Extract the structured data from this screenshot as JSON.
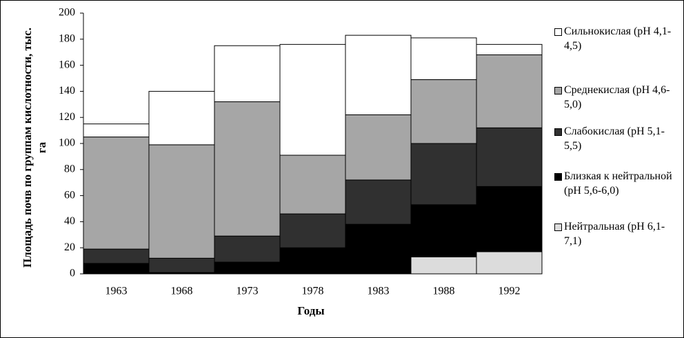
{
  "chart_data": {
    "type": "stacked_bar",
    "x_label": "Годы",
    "y_label": "Площадь почв по группам кислотности, тыс. га",
    "categories": [
      "1963",
      "1968",
      "1973",
      "1978",
      "1983",
      "1988",
      "1992"
    ],
    "series": [
      {
        "name": "Нейтральная (рН 6,1-7,1)",
        "color": "#dcdcdc",
        "values": [
          0,
          0,
          0,
          0,
          0,
          13,
          17
        ]
      },
      {
        "name": "Близкая к нейтральной (рН 5,6-6,0)",
        "color": "#000000",
        "values": [
          8,
          1,
          9,
          20,
          38,
          40,
          50
        ]
      },
      {
        "name": "Слабокислая (рН 5,1-5,5)",
        "color": "#303030",
        "values": [
          11,
          11,
          20,
          26,
          34,
          47,
          45
        ]
      },
      {
        "name": "Среднекислая (рН 4,6-5,0)",
        "color": "#a6a6a6",
        "values": [
          86,
          87,
          103,
          45,
          50,
          49,
          56
        ]
      },
      {
        "name": "Сильнокислая (рН 4,1-4,5)",
        "color": "#ffffff",
        "values": [
          10,
          41,
          43,
          85,
          61,
          32,
          8
        ]
      }
    ],
    "ylim": [
      0,
      200
    ],
    "yticks": [
      0,
      20,
      40,
      60,
      80,
      100,
      120,
      140,
      160,
      180,
      200
    ]
  }
}
